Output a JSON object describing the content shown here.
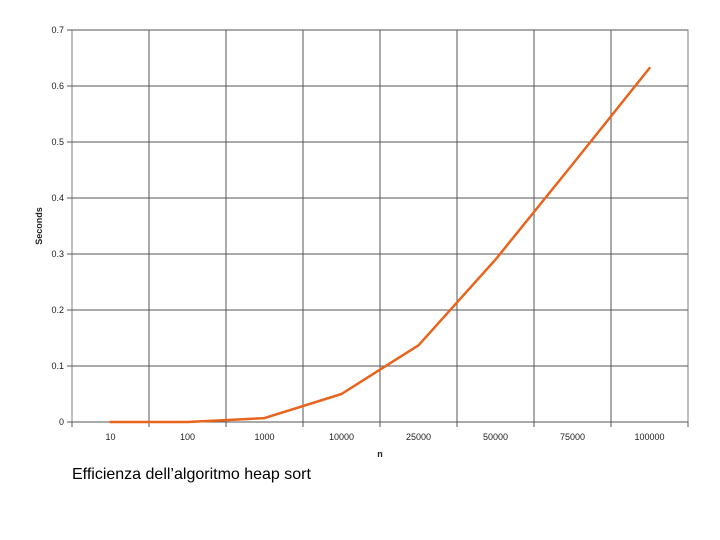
{
  "caption": "Efficienza dell’algoritmo heap sort",
  "chart_data": {
    "type": "line",
    "title": "",
    "xlabel": "n",
    "ylabel": "Seconds",
    "categories": [
      "10",
      "100",
      "1000",
      "10000",
      "25000",
      "50000",
      "75000",
      "100000"
    ],
    "ylim": [
      0,
      0.7
    ],
    "yticks": [
      "0",
      "0.1",
      "0.2",
      "0.3",
      "0.4",
      "0.5",
      "0.6",
      "0.7"
    ],
    "grid": true,
    "legend": "none",
    "series": [
      {
        "color": "#E8641E",
        "values": [
          0.0,
          0.0,
          0.007,
          0.05,
          0.137,
          0.29,
          0.46,
          0.632
        ]
      }
    ]
  }
}
